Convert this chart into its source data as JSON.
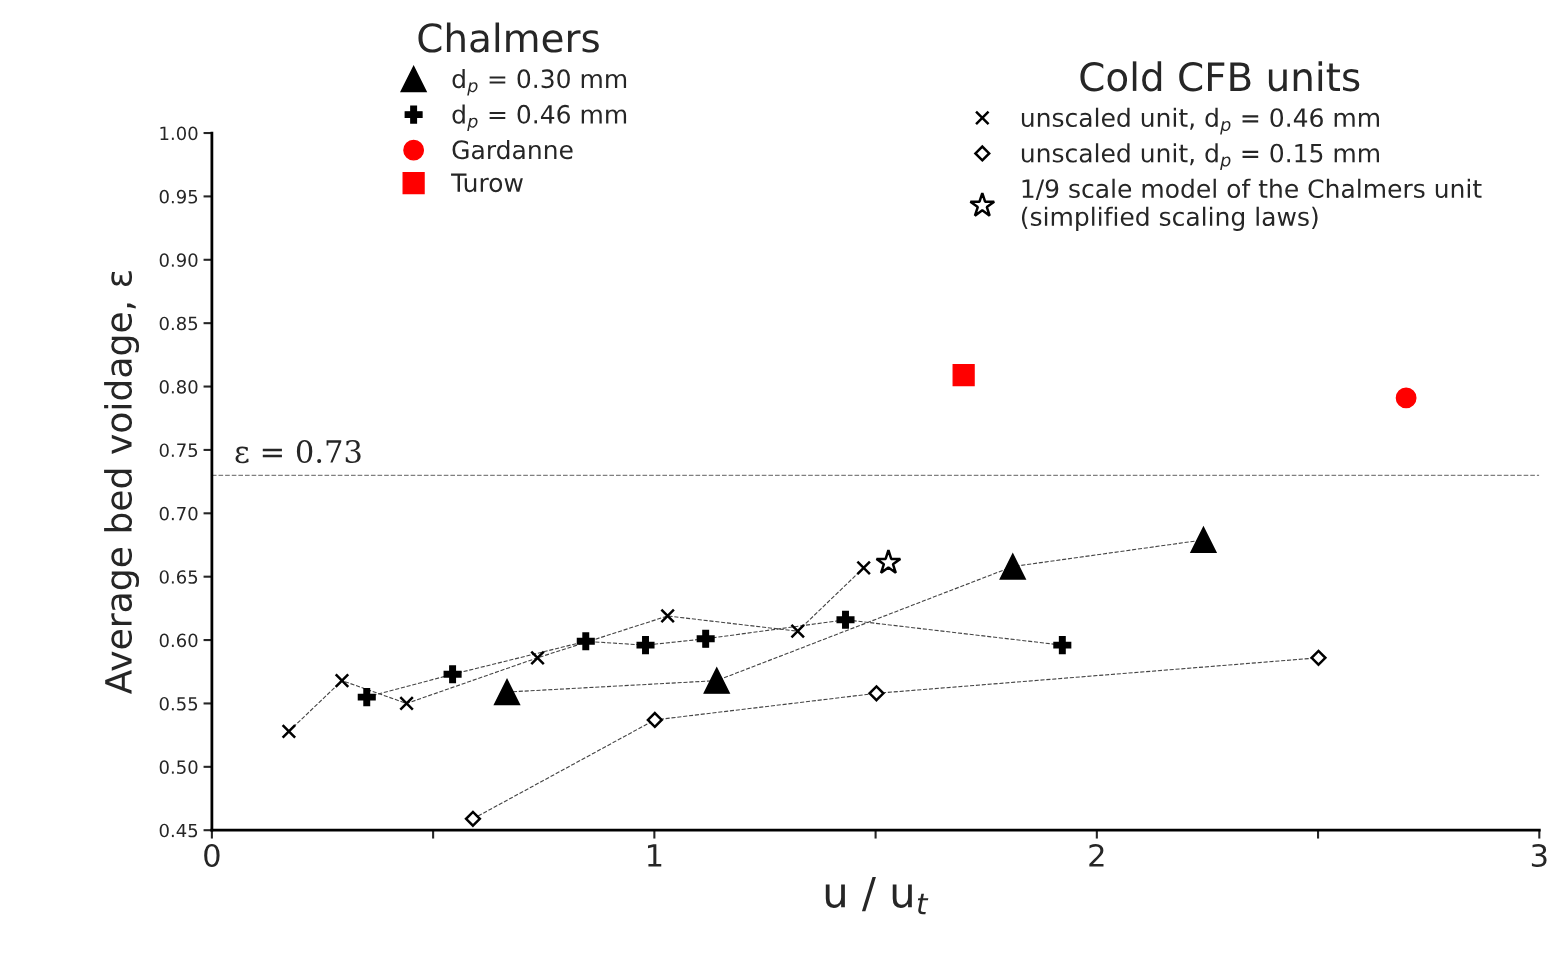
{
  "chart_data": {
    "type": "line",
    "xlabel": "u / u$_{t}$",
    "ylabel": "Average bed voidage, ε",
    "xlim": [
      0,
      3
    ],
    "ylim": [
      0.45,
      1.0
    ],
    "xticks": [
      0,
      {
        "value": 0.5,
        "label": null
      },
      1,
      {
        "value": 1.5,
        "label": null
      },
      2,
      {
        "value": 2.5,
        "label": null
      },
      3
    ],
    "yticks": [
      {
        "value": 0.45,
        "label": "0.45"
      },
      {
        "value": 0.5,
        "label": "0.50"
      },
      {
        "value": 0.55,
        "label": "0.55"
      },
      {
        "value": 0.6,
        "label": "0.60"
      },
      {
        "value": 0.65,
        "label": "0.65"
      },
      {
        "value": 0.7,
        "label": "0.70"
      },
      {
        "value": 0.75,
        "label": "0.75"
      },
      {
        "value": 0.8,
        "label": "0.80"
      },
      {
        "value": 0.85,
        "label": "0.85"
      },
      {
        "value": 0.9,
        "label": "0.90"
      },
      {
        "value": 0.95,
        "label": "0.95"
      },
      {
        "value": 1.0,
        "label": "1.00"
      }
    ],
    "grid": false,
    "legend": "top",
    "annotations": [
      "Chalmers",
      "Cold CFB units"
    ],
    "ref_lines": [
      {
        "axis": "y",
        "value": 0.73,
        "label": "ε = 0.73",
        "color": "#808080",
        "line_style": "dashed"
      }
    ],
    "series": [
      {
        "name": "d$_{p}$ = 0.30 mm",
        "marker": "triangle",
        "line_style": "dashed",
        "color": "#000000",
        "x": [
          0.667,
          1.141,
          1.81,
          2.241
        ],
        "values": [
          0.559,
          0.568,
          0.658,
          0.679
        ]
      },
      {
        "name": "d$_{p}$ = 0.46 mm",
        "marker": "plus",
        "line_style": "dashed",
        "color": "#000000",
        "x": [
          0.35,
          0.544,
          0.845,
          0.98,
          1.116,
          1.432,
          1.922
        ],
        "values": [
          0.555,
          0.573,
          0.599,
          0.596,
          0.601,
          0.616,
          0.596
        ]
      },
      {
        "name": "Gardanne",
        "type": "scatter",
        "marker": "circle",
        "color": "#ff0000",
        "x": [
          2.699
        ],
        "values": [
          0.791
        ]
      },
      {
        "name": "Turow",
        "type": "scatter",
        "marker": "square",
        "color": "#ff0000",
        "x": [
          1.699
        ],
        "values": [
          0.809
        ]
      },
      {
        "name": "unscaled unit, d$_{p}$ = 0.46 mm",
        "marker": "cross",
        "line_style": "dashed",
        "color": "#000000",
        "x": [
          0.174,
          0.294,
          0.44,
          0.736,
          1.03,
          1.324,
          1.473
        ],
        "values": [
          0.528,
          0.568,
          0.55,
          0.586,
          0.619,
          0.607,
          0.657
        ]
      },
      {
        "name": "unscaled unit, d$_{p}$ = 0.15 mm",
        "marker": "diamond",
        "line_style": "dashed",
        "color": "#000000",
        "x": [
          0.59,
          1.001,
          1.502,
          2.501
        ],
        "values": [
          0.459,
          0.537,
          0.558,
          0.586
        ]
      },
      {
        "name": "1/9 scale model of the Chalmers unit\n(simplified scaling laws)",
        "type": "scatter",
        "marker": "star",
        "color": "#000000",
        "x": [
          1.529
        ],
        "values": [
          0.661
        ]
      }
    ]
  }
}
